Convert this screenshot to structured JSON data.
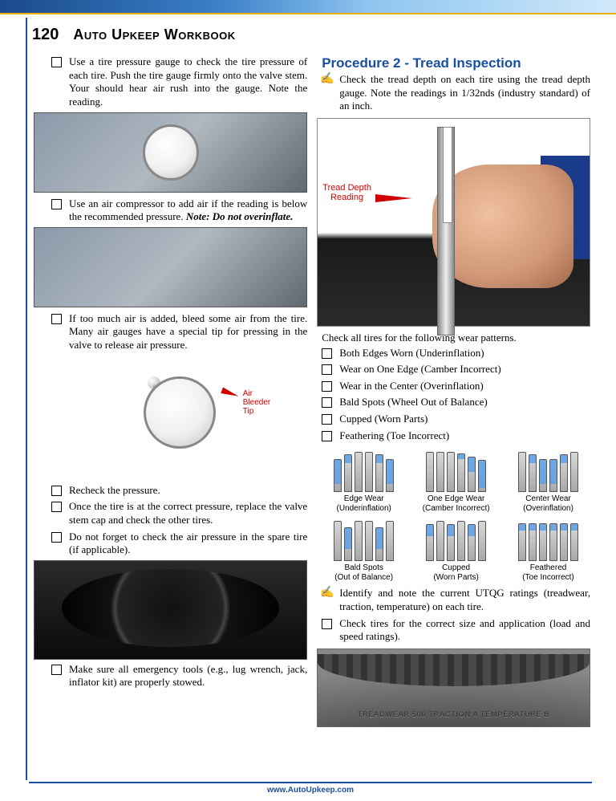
{
  "page_number": "120",
  "book_title_parts": {
    "a": "A",
    "uto": "uto",
    "u": "U",
    "pkeep": "pkeep",
    "w": "W",
    "orkbook": "orkbook"
  },
  "col_left": {
    "items": [
      "Use a tire pressure gauge to check the tire pressure of each tire. Push the tire gauge firmly onto the valve stem. Your should hear air rush into the gauge. Note the reading.",
      "Use an air compressor to add air if the reading is below the recommended pressure. ",
      "If too much air is added, bleed some air from the tire. Many air gauges have a special tip for pressing in the valve to release air pressure.",
      "Recheck the pressure.",
      "Once the tire is at the correct pressure, replace the valve stem cap and check the other tires.",
      "Do not forget to check the air pressure in the spare tire (if applicable).",
      "Make sure all emergency tools (e.g., lug wrench, jack, inflator kit) are properly stowed."
    ],
    "note": "Note: Do not overinflate.",
    "air_bleeder_label": "Air\nBleeder\nTip"
  },
  "col_right": {
    "proc_title": "Procedure 2 - Tread Inspection",
    "proc_text": "Check the tread depth on each tire using the tread depth gauge. Note the readings in 1/32nds (industry standard) of an inch.",
    "tread_label": "Tread Depth\nReading",
    "wear_intro": "Check all tires for the following wear patterns.",
    "wear_items": [
      "Both Edges Worn (Underinflation)",
      "Wear on One Edge (Camber Incorrect)",
      "Wear in the Center (Overinflation)",
      "Bald Spots (Wheel Out of Balance)",
      "Cupped (Worn Parts)",
      "Feathering (Toe Incorrect)"
    ],
    "wear_diagrams": [
      {
        "label1": "Edge Wear",
        "label2": "(Underinflation)",
        "tints": [
          30,
          10,
          0,
          0,
          10,
          30
        ]
      },
      {
        "label1": "One Edge Wear",
        "label2": "(Camber Incorrect)",
        "tints": [
          0,
          0,
          0,
          6,
          18,
          34
        ]
      },
      {
        "label1": "Center Wear",
        "label2": "(Overinflation)",
        "tints": [
          0,
          10,
          30,
          30,
          10,
          0
        ]
      },
      {
        "label1": "Bald Spots",
        "label2": "(Out of Balance)",
        "tints": [
          0,
          26,
          0,
          0,
          26,
          0
        ]
      },
      {
        "label1": "Cupped",
        "label2": "(Worn Parts)",
        "tints": [
          14,
          0,
          14,
          0,
          14,
          0
        ]
      },
      {
        "label1": "Feathered",
        "label2": "(Toe Incorrect)",
        "tints": [
          8,
          8,
          8,
          8,
          8,
          8
        ]
      }
    ],
    "after_items": [
      "Identify and note the current UTQG ratings (treadwear, traction, temperature) on each tire.",
      "Check tires for the correct size and application (load and speed ratings)."
    ],
    "sidewall": "TREADWEAR 500   TRACTION A   TEMPERATURE B"
  },
  "footer": "www.AutoUpkeep.com",
  "colors": {
    "accent": "#1a4fa0",
    "gold": "#f0b000",
    "red": "#d00000",
    "tint": "#5aa0e8"
  }
}
